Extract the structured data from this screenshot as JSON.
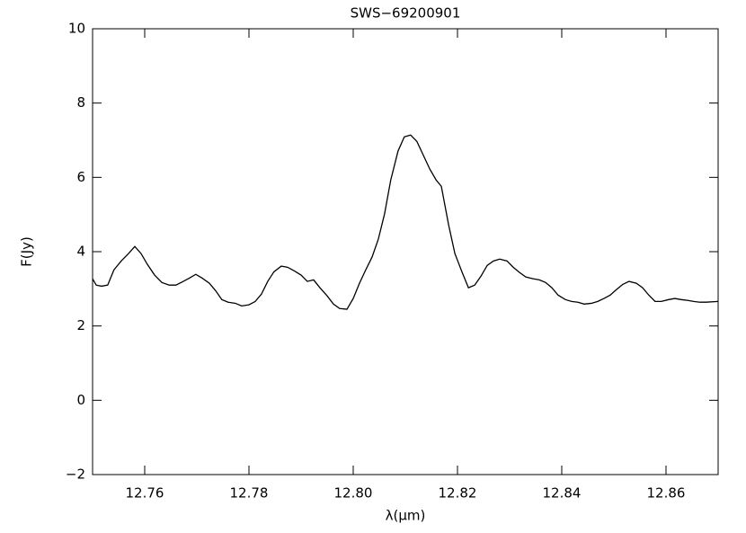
{
  "chart_data": {
    "type": "line",
    "title": "SWS−69200901",
    "xlabel": "λ(μm)",
    "ylabel": "F(Jy)",
    "xlim": [
      12.75,
      12.87
    ],
    "ylim": [
      -2,
      10
    ],
    "xticks": [
      12.76,
      12.78,
      {
        "value": 12.8,
        "label": "12.80"
      },
      12.82,
      12.84,
      12.86
    ],
    "yticks": [
      {
        "value": -2,
        "label": "−2"
      },
      0,
      2,
      4,
      6,
      8,
      10
    ],
    "color": "#000000",
    "x": [
      12.75,
      12.7507,
      12.7517,
      12.7529,
      12.7541,
      12.7555,
      12.7569,
      12.7581,
      12.7593,
      12.7605,
      12.7619,
      12.7633,
      12.7647,
      12.766,
      12.7674,
      12.7686,
      12.7698,
      12.771,
      12.7724,
      12.7736,
      12.7748,
      12.776,
      12.7774,
      12.7786,
      12.78,
      12.7812,
      12.7824,
      12.7836,
      12.7848,
      12.7862,
      12.7874,
      12.7886,
      12.79,
      12.7912,
      12.7924,
      12.7936,
      12.795,
      12.7962,
      12.7974,
      12.7988,
      12.8,
      12.8012,
      12.8024,
      12.8036,
      12.8048,
      12.806,
      12.8072,
      12.8086,
      12.8098,
      12.811,
      12.8122,
      12.8134,
      12.8147,
      12.8159,
      12.8169,
      12.8183,
      12.8195,
      12.8209,
      12.8221,
      12.8233,
      12.8245,
      12.8257,
      12.8269,
      12.8281,
      12.8295,
      12.8307,
      12.8319,
      12.8331,
      12.8345,
      12.8357,
      12.8369,
      12.8381,
      12.8393,
      12.8407,
      12.8419,
      12.8431,
      12.8443,
      12.8457,
      12.8469,
      12.8481,
      12.8493,
      12.8505,
      12.8517,
      12.8529,
      12.8543,
      12.8555,
      12.8567,
      12.8579,
      12.8591,
      12.8605,
      12.8617,
      12.8629,
      12.8641,
      12.8653,
      12.8665,
      12.8677,
      12.87
    ],
    "values": [
      3.27,
      3.1,
      3.07,
      3.1,
      3.51,
      3.75,
      3.95,
      4.14,
      3.95,
      3.66,
      3.37,
      3.17,
      3.1,
      3.1,
      3.2,
      3.29,
      3.39,
      3.29,
      3.15,
      2.95,
      2.71,
      2.64,
      2.61,
      2.54,
      2.57,
      2.66,
      2.86,
      3.2,
      3.46,
      3.61,
      3.58,
      3.49,
      3.37,
      3.2,
      3.24,
      3.03,
      2.81,
      2.59,
      2.47,
      2.45,
      2.74,
      3.15,
      3.51,
      3.85,
      4.33,
      5.01,
      5.93,
      6.71,
      7.09,
      7.14,
      6.97,
      6.61,
      6.22,
      5.93,
      5.76,
      4.72,
      3.95,
      3.44,
      3.03,
      3.1,
      3.34,
      3.63,
      3.75,
      3.8,
      3.75,
      3.58,
      3.44,
      3.32,
      3.27,
      3.24,
      3.17,
      3.03,
      2.83,
      2.71,
      2.66,
      2.64,
      2.59,
      2.61,
      2.66,
      2.74,
      2.83,
      2.98,
      3.12,
      3.2,
      3.15,
      3.03,
      2.83,
      2.66,
      2.66,
      2.71,
      2.74,
      2.71,
      2.69,
      2.66,
      2.64,
      2.64,
      2.66
    ]
  }
}
